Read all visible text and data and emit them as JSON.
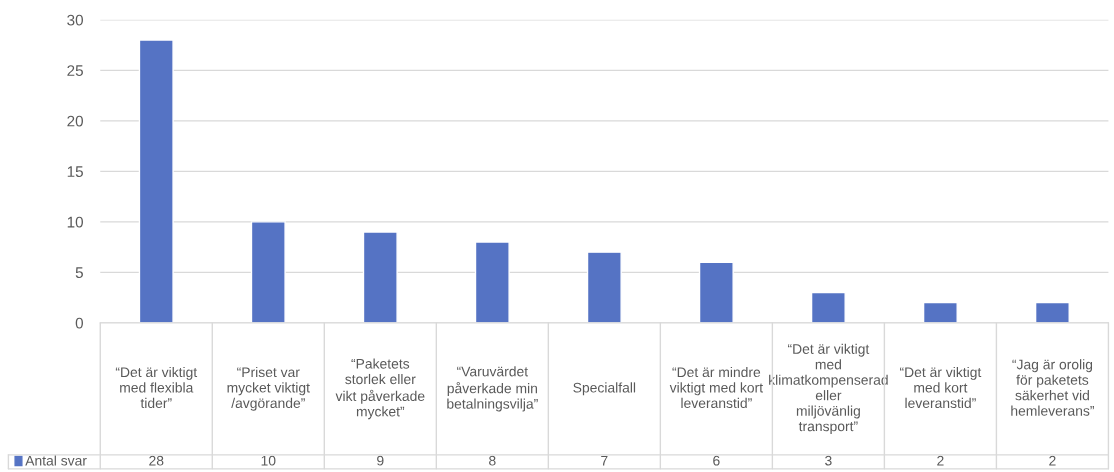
{
  "chart_data": {
    "type": "bar",
    "categories": [
      "“Det är viktigt med flexibla tider”",
      "“Priset var mycket viktigt /avgörande”",
      "“Paketets storlek eller vikt påverkade mycket”",
      "“Varuvärdet påverkade min betalningsvilja”",
      "Specialfall",
      "“Det är mindre viktigt med kort leveranstid”",
      "“Det är viktigt med klimatkompenserad eller miljövänlig transport”",
      "“Det är viktigt med kort leveranstid”",
      "“Jag är orolig för paketets säkerhet vid hemleverans”"
    ],
    "series": [
      {
        "name": "Antal svar",
        "color": "#5573c4",
        "values": [
          28,
          10,
          9,
          8,
          7,
          6,
          3,
          2,
          2
        ]
      }
    ],
    "ylim": [
      0,
      30
    ],
    "yticks": [
      0,
      5,
      10,
      15,
      20,
      25,
      30
    ],
    "grid": "y",
    "legend": "bottom",
    "data_labels": true
  }
}
